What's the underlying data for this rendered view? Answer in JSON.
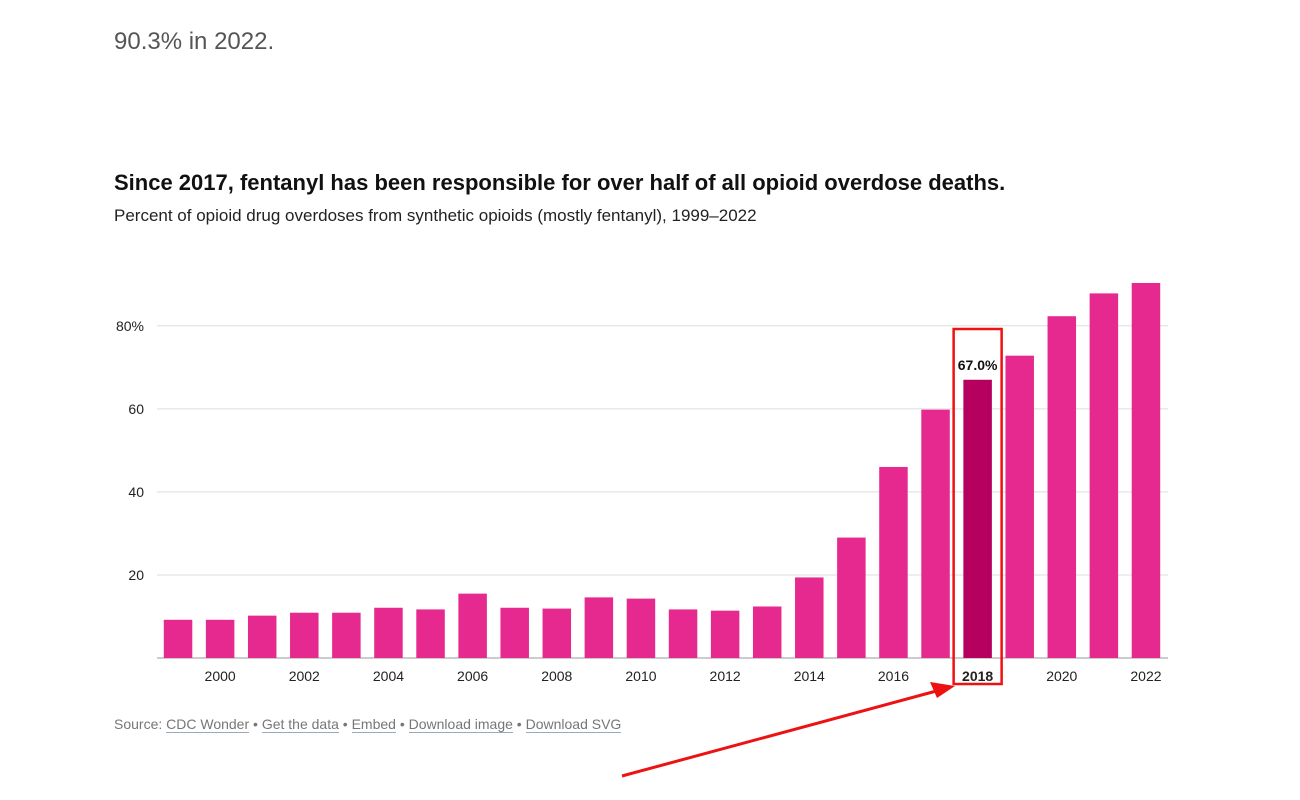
{
  "intro_text": "90.3% in 2022.",
  "title": "Since 2017, fentanyl has been responsible for over half of all opioid overdose deaths.",
  "subtitle": "Percent of opioid drug overdoses from synthetic opioids (mostly fentanyl), 1999–2022",
  "source": {
    "label": "Source: ",
    "cdc": "CDC Wonder",
    "sep": " • ",
    "get_data": "Get the data",
    "embed": "Embed",
    "download_image": "Download image",
    "download_svg": "Download SVG"
  },
  "colors": {
    "bar": "#e6298f",
    "highlight": "#b5005f",
    "grid": "#dddddd",
    "annotation": "#ee1111"
  },
  "chart_data": {
    "type": "bar",
    "title": "Since 2017, fentanyl has been responsible for over half of all opioid overdose deaths.",
    "subtitle": "Percent of opioid drug overdoses from synthetic opioids (mostly fentanyl), 1999–2022",
    "categories": [
      "1999",
      "2000",
      "2001",
      "2002",
      "2003",
      "2004",
      "2005",
      "2006",
      "2007",
      "2008",
      "2009",
      "2010",
      "2011",
      "2012",
      "2013",
      "2014",
      "2015",
      "2016",
      "2017",
      "2018",
      "2019",
      "2020",
      "2021",
      "2022"
    ],
    "values": [
      9.2,
      9.2,
      10.2,
      10.9,
      10.9,
      12.1,
      11.7,
      15.5,
      12.1,
      11.9,
      14.6,
      14.3,
      11.7,
      11.4,
      12.4,
      19.4,
      29.0,
      46.0,
      59.8,
      67.0,
      72.8,
      82.3,
      87.8,
      90.3
    ],
    "ylim": [
      0,
      90.3
    ],
    "yticks": [
      20,
      40,
      60,
      80
    ],
    "ytick_labels": [
      "20",
      "40",
      "60",
      "80%"
    ],
    "xticks": [
      "2000",
      "2002",
      "2004",
      "2006",
      "2008",
      "2010",
      "2012",
      "2014",
      "2016",
      "2018",
      "2020",
      "2022"
    ],
    "highlight": {
      "category": "2018",
      "label": "67.0%"
    },
    "xlabel": "",
    "ylabel": ""
  }
}
